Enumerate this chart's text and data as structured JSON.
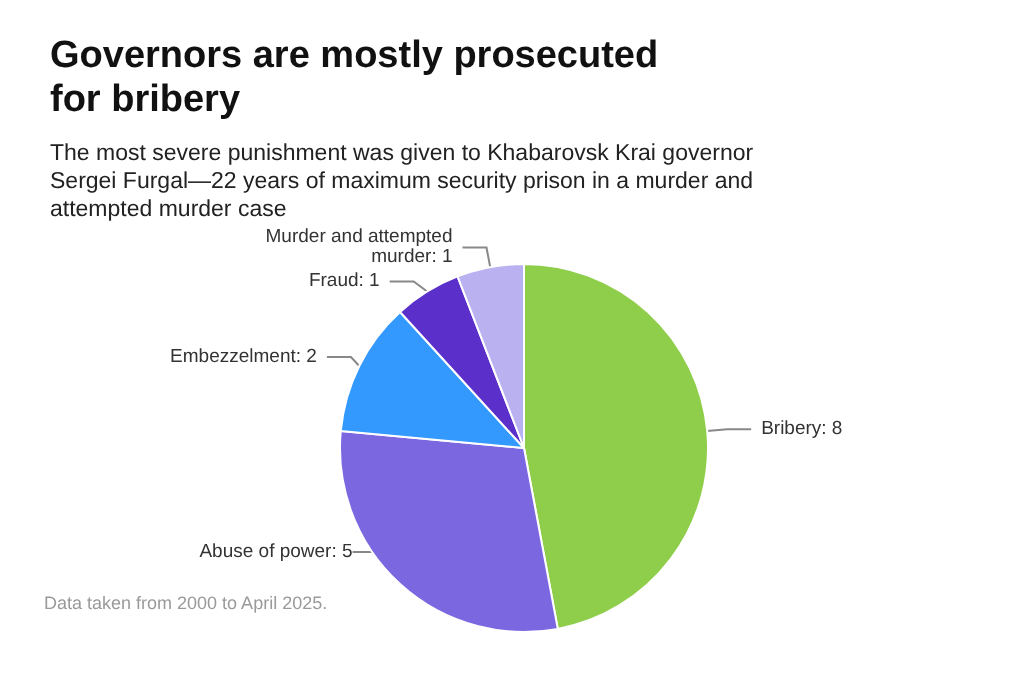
{
  "chart_data": {
    "type": "pie",
    "title": "Governors are mostly prosecuted for bribery",
    "subtitle": "The most severe punishment was given to Khabarovsk Krai governor Sergei Furgal—22 years of maximum security prison in a murder and attempted murder case",
    "categories": [
      null,
      null,
      null,
      null,
      null
    ],
    "values": [
      8,
      5,
      2,
      1,
      1
    ],
    "colors": [
      "#8fce4a",
      "#7b68e0",
      "#3399ff",
      "#5b2fc9",
      "#b9b1f0"
    ],
    "value_labels": [
      "Bribery: 8",
      "Abuse of power: 5",
      "Embezzelment: 2",
      "Fraud: 1",
      "Murder and attempted murder: 1"
    ],
    "annotations": [
      "Data taken from 2000 to April 2025."
    ]
  }
}
